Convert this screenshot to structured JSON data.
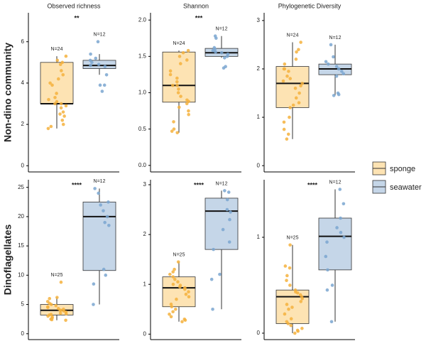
{
  "chart_data": [
    {
      "type": "box",
      "title": "Observed richness",
      "ylabel": "Non-dino community",
      "annotation": "**",
      "ylim": [
        -0.3,
        7.4
      ],
      "yticks": [
        0,
        2,
        4,
        6
      ],
      "series": [
        {
          "name": "sponge",
          "fill": "#fde3b3",
          "color": "#f5b13d",
          "n_label": "N=24",
          "min": 1.8,
          "q1": 3.0,
          "median": 3.0,
          "q3": 5.0,
          "max": 5.3,
          "points": [
            5.3,
            5.1,
            5.0,
            4.9,
            4.6,
            4.4,
            4.2,
            4.0,
            3.9,
            3.5,
            3.3,
            3.2,
            3.1,
            3.0,
            3.0,
            2.9,
            2.8,
            2.6,
            2.5,
            2.4,
            2.2,
            2.0,
            1.9,
            1.8
          ]
        },
        {
          "name": "seawater",
          "fill": "#c5d6e8",
          "color": "#7aa6d0",
          "n_label": "N=12",
          "min": 4.4,
          "q1": 4.7,
          "median": 4.85,
          "q3": 5.1,
          "max": 5.4,
          "points": [
            6.0,
            5.4,
            5.2,
            5.1,
            5.0,
            4.9,
            4.85,
            4.8,
            4.4,
            3.9,
            3.9,
            3.6
          ]
        }
      ]
    },
    {
      "type": "box",
      "title": "Shannon",
      "annotation": "***",
      "ylim": [
        -0.09,
        2.1
      ],
      "yticks": [
        {
          "value": 0,
          "label": "0.0"
        },
        0.5,
        {
          "value": 1,
          "label": "1.0"
        },
        1.5,
        {
          "value": 2,
          "label": "2.0"
        }
      ],
      "series": [
        {
          "fill": "#fde3b3",
          "color": "#f5b13d",
          "n_label": "N=24",
          "min": 0.45,
          "q1": 0.87,
          "median": 1.1,
          "q3": 1.56,
          "max": 1.58,
          "points": [
            1.58,
            1.55,
            1.5,
            1.45,
            1.4,
            1.3,
            1.25,
            1.2,
            1.15,
            1.1,
            1.1,
            1.05,
            1.0,
            0.95,
            0.9,
            0.88,
            0.85,
            0.8,
            0.75,
            0.7,
            0.6,
            0.5,
            0.47,
            0.45
          ]
        },
        {
          "fill": "#c5d6e8",
          "color": "#7aa6d0",
          "n_label": "N=12",
          "min": 1.48,
          "q1": 1.5,
          "median": 1.55,
          "q3": 1.61,
          "max": 1.78,
          "points": [
            1.78,
            1.75,
            1.62,
            1.6,
            1.58,
            1.56,
            1.55,
            1.53,
            1.5,
            1.48,
            1.36,
            1.34
          ]
        }
      ]
    },
    {
      "type": "box",
      "title": "Phylogenetic Diversity",
      "ylim": [
        -0.13,
        3.16
      ],
      "yticks": [
        0,
        1,
        2,
        3
      ],
      "series": [
        {
          "fill": "#fde3b3",
          "color": "#f5b13d",
          "n_label": "N=24",
          "min": 0.55,
          "q1": 1.2,
          "median": 1.7,
          "q3": 2.05,
          "max": 2.55,
          "points": [
            2.55,
            2.4,
            2.35,
            2.2,
            2.1,
            2.0,
            2.0,
            1.95,
            1.85,
            1.8,
            1.75,
            1.7,
            1.65,
            1.6,
            1.5,
            1.4,
            1.3,
            1.25,
            1.2,
            1.0,
            0.9,
            0.75,
            0.65,
            0.55
          ]
        },
        {
          "fill": "#c5d6e8",
          "color": "#7aa6d0",
          "n_label": "N=12",
          "min": 1.45,
          "q1": 1.88,
          "median": 2.0,
          "q3": 2.1,
          "max": 2.5,
          "points": [
            2.5,
            2.25,
            2.15,
            2.1,
            2.05,
            2.0,
            1.95,
            1.9,
            1.85,
            1.5,
            1.47,
            1.45
          ]
        }
      ]
    },
    {
      "type": "box",
      "ylabel": "Dinoflagellates",
      "annotation": "****",
      "ylim": [
        -1,
        26.3
      ],
      "yticks": [
        0,
        5,
        10,
        15,
        20,
        25
      ],
      "series": [
        {
          "fill": "#fde3b3",
          "color": "#f5b13d",
          "n_label": "N=25",
          "min": 2.3,
          "q1": 3.2,
          "median": 4.0,
          "q3": 5.0,
          "max": 6.2,
          "points": [
            8.8,
            6.2,
            6.0,
            5.5,
            5.2,
            5.0,
            4.8,
            4.6,
            4.5,
            4.3,
            4.2,
            4.0,
            4.0,
            3.9,
            3.7,
            3.5,
            3.4,
            3.3,
            3.2,
            3.0,
            2.9,
            2.7,
            2.5,
            2.4,
            2.3
          ]
        },
        {
          "fill": "#c5d6e8",
          "color": "#7aa6d0",
          "n_label": "N=12",
          "min": 5.0,
          "q1": 10.8,
          "median": 20.0,
          "q3": 22.5,
          "max": 24.8,
          "points": [
            24.8,
            24.0,
            22.5,
            22.0,
            21.0,
            20.0,
            19.0,
            18.5,
            11.0,
            10.0,
            8.5,
            5.0
          ]
        }
      ]
    },
    {
      "type": "box",
      "annotation": "****",
      "ylim": [
        -0.11,
        3.1
      ],
      "yticks": [
        0,
        1,
        2,
        3
      ],
      "series": [
        {
          "fill": "#fde3b3",
          "color": "#f5b13d",
          "n_label": "N=25",
          "min": 0.25,
          "q1": 0.55,
          "median": 0.93,
          "q3": 1.15,
          "max": 1.45,
          "points": [
            1.45,
            1.3,
            1.25,
            1.2,
            1.15,
            1.1,
            1.05,
            1.0,
            0.98,
            0.95,
            0.93,
            0.9,
            0.85,
            0.8,
            0.75,
            0.7,
            0.6,
            0.55,
            0.5,
            0.45,
            0.4,
            0.35,
            0.3,
            0.28,
            0.25
          ]
        },
        {
          "fill": "#c5d6e8",
          "color": "#7aa6d0",
          "n_label": "N=12",
          "min": 0.5,
          "q1": 1.7,
          "median": 2.47,
          "q3": 2.73,
          "max": 2.88,
          "points": [
            2.88,
            2.85,
            2.7,
            2.5,
            2.45,
            2.3,
            2.1,
            1.85,
            1.7,
            1.2,
            1.1,
            0.5
          ]
        }
      ]
    },
    {
      "type": "box",
      "annotation": "****",
      "ylim": [
        -0.067,
        1.6
      ],
      "yticks": [
        0,
        1
      ],
      "series": [
        {
          "fill": "#fde3b3",
          "color": "#f5b13d",
          "n_label": "N=25",
          "min": 0.0,
          "q1": 0.1,
          "median": 0.38,
          "q3": 0.45,
          "max": 0.92,
          "points": [
            0.92,
            0.7,
            0.68,
            0.6,
            0.55,
            0.5,
            0.45,
            0.43,
            0.42,
            0.4,
            0.38,
            0.36,
            0.33,
            0.3,
            0.27,
            0.25,
            0.2,
            0.15,
            0.12,
            0.1,
            0.08,
            0.05,
            0.03,
            0.02,
            0.0
          ]
        },
        {
          "fill": "#c5d6e8",
          "color": "#7aa6d0",
          "n_label": "N=12",
          "min": 0.12,
          "q1": 0.66,
          "median": 1.01,
          "q3": 1.2,
          "max": 1.5,
          "points": [
            1.5,
            1.35,
            1.2,
            1.1,
            1.05,
            1.0,
            0.95,
            0.8,
            0.66,
            0.5,
            0.45,
            0.12
          ]
        }
      ]
    }
  ]
}
